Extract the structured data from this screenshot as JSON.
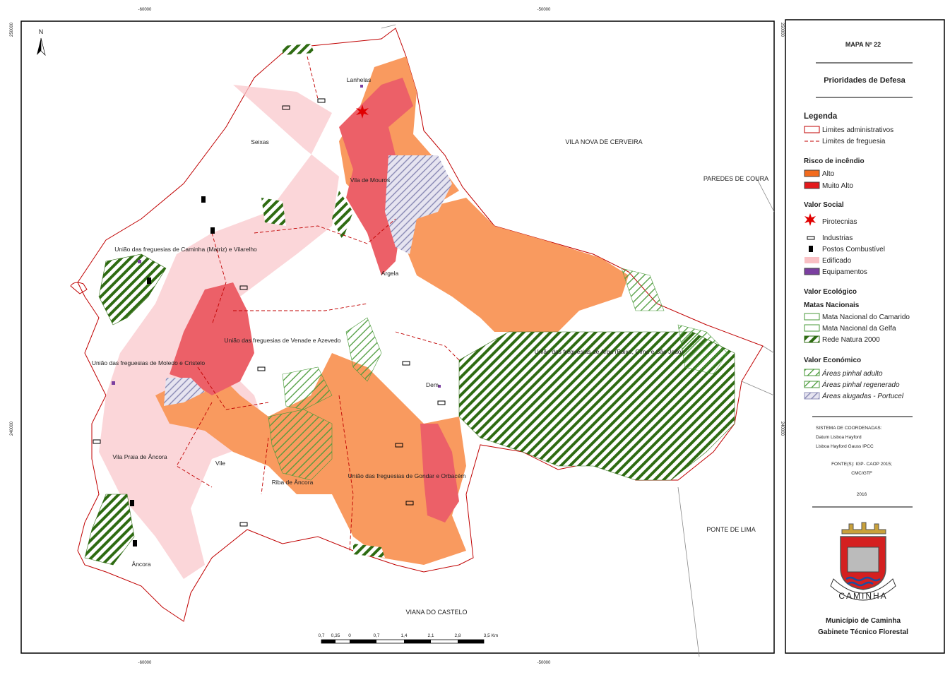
{
  "map": {
    "north": "N",
    "coordinates": {
      "top": [
        "-60000",
        "-50000"
      ],
      "bottom": [
        "-60000",
        "-50000"
      ],
      "left": [
        "250000",
        "240000"
      ],
      "right": [
        "250000",
        "240000"
      ]
    },
    "places": [
      "Lanhelas",
      "Seixas",
      "Vila de Mouros",
      "VILA NOVA DE CERVEIRA",
      "PAREDES DE COURA",
      "União das freguesias de Caminha (Matriz) e Vilarelho",
      "Argela",
      "União das freguesias de Venade e Azevedo",
      "União das freguesias de Moledo e Cristelo",
      "União das freguesias de Arga (Baixo, Cima e São João)",
      "Dem",
      "Vila Praia de Âncora",
      "Vile",
      "Riba de Âncora",
      "União das freguesias de Gondar e Orbacém",
      "PONTE DE LIMA",
      "Âncora",
      "VIANA DO CASTELO"
    ],
    "scale": [
      "0,7",
      "0,35",
      "0",
      "0,7",
      "1,4",
      "2,1",
      "2,8",
      "3,5 Km"
    ]
  },
  "legend": {
    "map_number": "MAPA Nº 22",
    "subtitle": "Prioridades de Defesa",
    "heading": "Legenda",
    "limits": [
      "Limites administrativos",
      "Limites de freguesia"
    ],
    "fire_risk": {
      "title": "Risco de incêndio",
      "items": [
        "Alto",
        "Muito Alto"
      ]
    },
    "social": {
      "title": "Valor Social",
      "items": [
        "Pirotecnias",
        "Industrias",
        "Postos Combustível",
        "Edificado",
        "Equipamentos"
      ]
    },
    "ecological": {
      "title": "Valor Ecológico",
      "subtitle": "Matas Nacionais",
      "items": [
        "Mata Nacional do Camarido",
        "Mata Nacional da Gelfa",
        "Rede Natura 2000"
      ]
    },
    "economic": {
      "title": "Valor Económico",
      "items": [
        "Áreas pinhal adulto",
        "Áreas pinhal regenerado",
        "Áreas alugadas - Portucel"
      ]
    },
    "coordinate_system": [
      "SISTEMA DE COORDENADAS:",
      "Datum Lisboa Hayford",
      "Lisboa Hayford Gauss IPCC"
    ],
    "sources": [
      "FONTE(S): IGP- CAOP 2015;",
      "CMC/GTF"
    ],
    "year": "2016",
    "crest_text": "CAMINHA",
    "footer": [
      "Município de Caminha",
      "Gabinete Técnico Florestal"
    ]
  }
}
